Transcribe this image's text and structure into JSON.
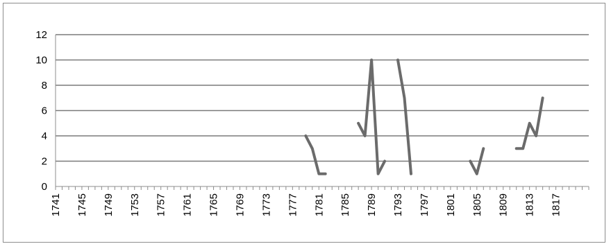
{
  "chart_data": {
    "type": "line",
    "title": "",
    "xlabel": "",
    "ylabel": "",
    "ylim": [
      0,
      12
    ],
    "y_ticks": [
      0,
      2,
      4,
      6,
      8,
      10,
      12
    ],
    "x_range": [
      1741,
      1822
    ],
    "x_tick_labels": [
      "1741",
      "1745",
      "1749",
      "1753",
      "1757",
      "1761",
      "1765",
      "1769",
      "1773",
      "1777",
      "1781",
      "1785",
      "1789",
      "1793",
      "1797",
      "1801",
      "1805",
      "1809",
      "1813",
      "1817"
    ],
    "grid": true,
    "legend": "none",
    "series_color": "#6b6b6b",
    "series": [
      {
        "segments": [
          [
            [
              1779,
              4
            ],
            [
              1780,
              3
            ],
            [
              1781,
              1
            ],
            [
              1782,
              1
            ]
          ],
          [
            [
              1787,
              5
            ],
            [
              1788,
              4
            ],
            [
              1789,
              10
            ],
            [
              1790,
              1
            ],
            [
              1791,
              2
            ]
          ],
          [
            [
              1793,
              10
            ],
            [
              1794,
              7
            ],
            [
              1795,
              1
            ]
          ],
          [
            [
              1804,
              2
            ],
            [
              1805,
              1
            ],
            [
              1806,
              3
            ]
          ],
          [
            [
              1811,
              3
            ],
            [
              1812,
              3
            ],
            [
              1813,
              5
            ],
            [
              1814,
              4
            ],
            [
              1815,
              7
            ]
          ]
        ]
      }
    ]
  }
}
